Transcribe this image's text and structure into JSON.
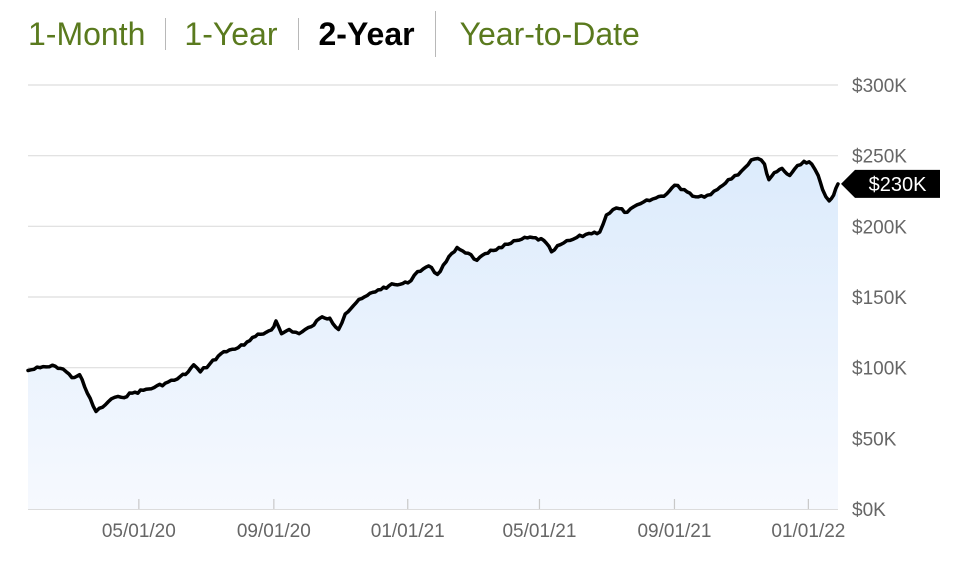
{
  "tabs": [
    {
      "label": "1-Month",
      "active": false
    },
    {
      "label": "1-Year",
      "active": false
    },
    {
      "label": "2-Year",
      "active": true
    },
    {
      "label": "Year-to-Date",
      "active": false
    }
  ],
  "colors": {
    "accent": "#5a7a1e",
    "active_tab": "#000000",
    "line": "#000000",
    "fill": "#e8f2fd",
    "grid": "#dedede",
    "axis_text": "#666666",
    "callout_bg": "#000000",
    "callout_text": "#ffffff"
  },
  "chart_data": {
    "type": "area",
    "title": "",
    "xlabel": "",
    "ylabel": "",
    "x_ticks": [
      "05/01/20",
      "09/01/20",
      "01/01/21",
      "05/01/21",
      "09/01/21",
      "01/01/22"
    ],
    "y_ticks": [
      "$0K",
      "$50K",
      "$100K",
      "$150K",
      "$200K",
      "$250K",
      "$300K"
    ],
    "ylim": [
      0,
      300000
    ],
    "xlim": [
      "2020-01-21",
      "2022-01-28"
    ],
    "grid": true,
    "current_value_label": "$230K",
    "current_value": 230000,
    "series": [
      {
        "values": [
          [
            "2020-01-21",
            98000
          ],
          [
            "2020-02-01",
            100000
          ],
          [
            "2020-02-15",
            101000
          ],
          [
            "2020-02-22",
            99000
          ],
          [
            "2020-03-01",
            93000
          ],
          [
            "2020-03-08",
            95000
          ],
          [
            "2020-03-15",
            82000
          ],
          [
            "2020-03-23",
            69000
          ],
          [
            "2020-03-29",
            72000
          ],
          [
            "2020-04-06",
            78000
          ],
          [
            "2020-04-15",
            79000
          ],
          [
            "2020-04-25",
            82000
          ],
          [
            "2020-05-05",
            84000
          ],
          [
            "2020-05-15",
            86000
          ],
          [
            "2020-05-25",
            89000
          ],
          [
            "2020-06-05",
            92000
          ],
          [
            "2020-06-15",
            97000
          ],
          [
            "2020-06-20",
            102000
          ],
          [
            "2020-06-26",
            97000
          ],
          [
            "2020-07-05",
            103000
          ],
          [
            "2020-07-15",
            110000
          ],
          [
            "2020-07-25",
            113000
          ],
          [
            "2020-08-05",
            116000
          ],
          [
            "2020-08-15",
            122000
          ],
          [
            "2020-08-25",
            125000
          ],
          [
            "2020-09-01",
            129000
          ],
          [
            "2020-09-03",
            133000
          ],
          [
            "2020-09-08",
            124000
          ],
          [
            "2020-09-15",
            127000
          ],
          [
            "2020-09-24",
            124000
          ],
          [
            "2020-10-05",
            129000
          ],
          [
            "2020-10-15",
            136000
          ],
          [
            "2020-10-22",
            135000
          ],
          [
            "2020-10-30",
            127000
          ],
          [
            "2020-11-05",
            138000
          ],
          [
            "2020-11-15",
            146000
          ],
          [
            "2020-11-25",
            151000
          ],
          [
            "2020-12-05",
            155000
          ],
          [
            "2020-12-15",
            158000
          ],
          [
            "2020-12-25",
            159000
          ],
          [
            "2021-01-01",
            160000
          ],
          [
            "2021-01-10",
            168000
          ],
          [
            "2021-01-20",
            172000
          ],
          [
            "2021-01-28",
            166000
          ],
          [
            "2021-02-05",
            175000
          ],
          [
            "2021-02-15",
            185000
          ],
          [
            "2021-02-25",
            181000
          ],
          [
            "2021-03-05",
            176000
          ],
          [
            "2021-03-15",
            181000
          ],
          [
            "2021-03-25",
            185000
          ],
          [
            "2021-04-05",
            188000
          ],
          [
            "2021-04-15",
            191000
          ],
          [
            "2021-04-25",
            192000
          ],
          [
            "2021-05-05",
            190000
          ],
          [
            "2021-05-12",
            182000
          ],
          [
            "2021-05-20",
            187000
          ],
          [
            "2021-06-01",
            191000
          ],
          [
            "2021-06-15",
            195000
          ],
          [
            "2021-06-25",
            196000
          ],
          [
            "2021-07-01",
            208000
          ],
          [
            "2021-07-10",
            213000
          ],
          [
            "2021-07-20",
            210000
          ],
          [
            "2021-08-01",
            216000
          ],
          [
            "2021-08-15",
            220000
          ],
          [
            "2021-08-25",
            223000
          ],
          [
            "2021-09-01",
            229000
          ],
          [
            "2021-09-10",
            226000
          ],
          [
            "2021-09-20",
            221000
          ],
          [
            "2021-10-01",
            222000
          ],
          [
            "2021-10-10",
            226000
          ],
          [
            "2021-10-20",
            233000
          ],
          [
            "2021-11-01",
            239000
          ],
          [
            "2021-11-10",
            247000
          ],
          [
            "2021-11-16",
            248000
          ],
          [
            "2021-11-22",
            244000
          ],
          [
            "2021-11-26",
            233000
          ],
          [
            "2021-12-01",
            238000
          ],
          [
            "2021-12-08",
            241000
          ],
          [
            "2021-12-15",
            236000
          ],
          [
            "2021-12-22",
            243000
          ],
          [
            "2021-12-28",
            246000
          ],
          [
            "2022-01-04",
            244000
          ],
          [
            "2022-01-10",
            236000
          ],
          [
            "2022-01-14",
            226000
          ],
          [
            "2022-01-20",
            218000
          ],
          [
            "2022-01-24",
            222000
          ],
          [
            "2022-01-28",
            230000
          ]
        ]
      }
    ]
  }
}
